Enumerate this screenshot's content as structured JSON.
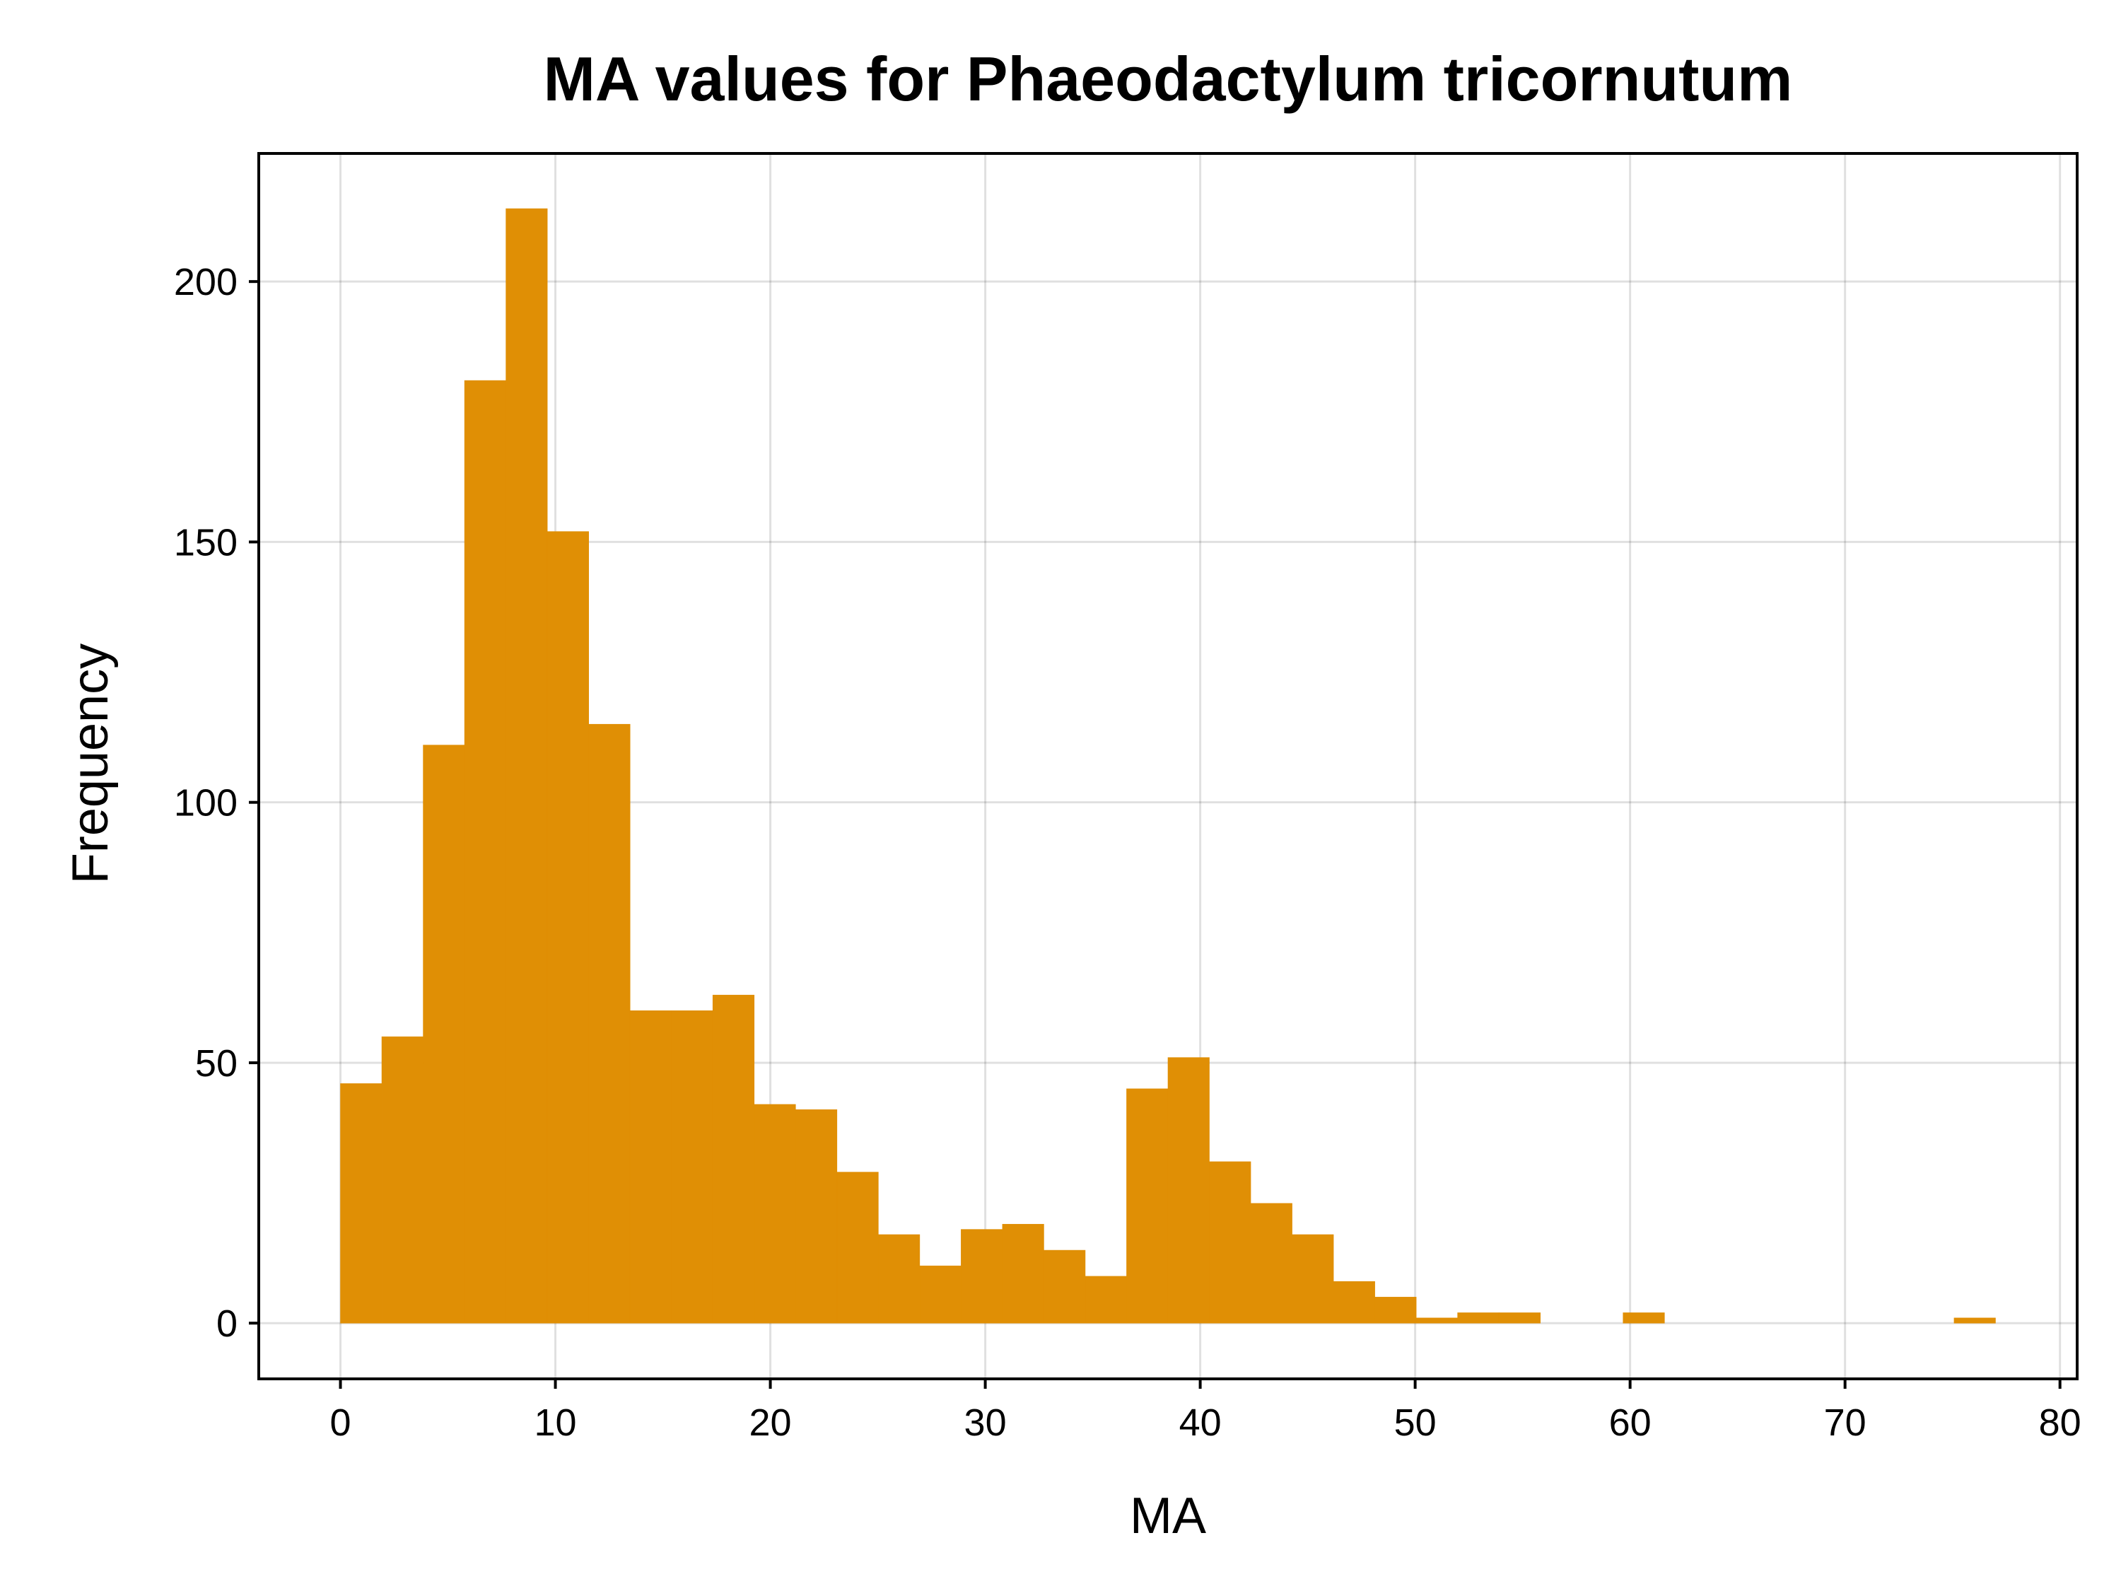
{
  "chart_data": {
    "type": "bar",
    "title": "MA values for Phaeodactylum tricornutum",
    "xlabel": "MA",
    "ylabel": "Frequency",
    "xlim": [
      -3.8,
      80.8
    ],
    "ylim": [
      -10.7,
      224.6
    ],
    "x_ticks": [
      0,
      10,
      20,
      30,
      40,
      50,
      60,
      70,
      80
    ],
    "y_ticks": [
      0,
      50,
      100,
      150,
      200
    ],
    "grid": true,
    "bar_color": "#E08F05",
    "bin_width": 1.925,
    "bins": [
      {
        "x0": 0.0,
        "value": 46
      },
      {
        "x0": 1.925,
        "value": 55
      },
      {
        "x0": 3.85,
        "value": 111
      },
      {
        "x0": 5.775,
        "value": 181
      },
      {
        "x0": 7.7,
        "value": 214
      },
      {
        "x0": 9.625,
        "value": 152
      },
      {
        "x0": 11.55,
        "value": 115
      },
      {
        "x0": 13.475,
        "value": 60
      },
      {
        "x0": 15.4,
        "value": 60
      },
      {
        "x0": 17.325,
        "value": 63
      },
      {
        "x0": 19.25,
        "value": 42
      },
      {
        "x0": 21.175,
        "value": 41
      },
      {
        "x0": 23.1,
        "value": 29
      },
      {
        "x0": 25.025,
        "value": 17
      },
      {
        "x0": 26.95,
        "value": 11
      },
      {
        "x0": 28.875,
        "value": 18
      },
      {
        "x0": 30.8,
        "value": 19
      },
      {
        "x0": 32.725,
        "value": 14
      },
      {
        "x0": 34.65,
        "value": 9
      },
      {
        "x0": 36.575,
        "value": 45
      },
      {
        "x0": 38.5,
        "value": 51
      },
      {
        "x0": 40.425,
        "value": 31
      },
      {
        "x0": 42.35,
        "value": 23
      },
      {
        "x0": 44.275,
        "value": 17
      },
      {
        "x0": 46.2,
        "value": 8
      },
      {
        "x0": 48.125,
        "value": 5
      },
      {
        "x0": 50.05,
        "value": 1
      },
      {
        "x0": 51.975,
        "value": 2
      },
      {
        "x0": 53.9,
        "value": 2
      },
      {
        "x0": 59.675,
        "value": 2
      },
      {
        "x0": 75.075,
        "value": 1
      }
    ]
  }
}
